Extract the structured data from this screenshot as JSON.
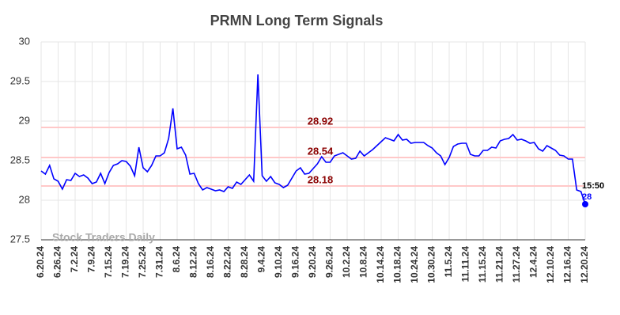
{
  "chart_data": {
    "type": "line",
    "title": "PRMN Long Term Signals",
    "categories": [
      "6.20.24",
      null,
      null,
      null,
      "6.26.24",
      null,
      null,
      null,
      "7.2.24",
      null,
      null,
      null,
      "7.9.24",
      null,
      null,
      null,
      "7.15.24",
      null,
      null,
      null,
      "7.19.24",
      null,
      null,
      null,
      "7.25.24",
      null,
      null,
      null,
      "7.31.24",
      null,
      null,
      null,
      "8.6.24",
      null,
      null,
      null,
      "8.12.24",
      null,
      null,
      null,
      "8.16.24",
      null,
      null,
      null,
      "8.22.24",
      null,
      null,
      null,
      "8.28.24",
      null,
      null,
      null,
      "9.4.24",
      null,
      null,
      null,
      "9.10.24",
      null,
      null,
      null,
      "9.16.24",
      null,
      null,
      null,
      "9.20.24",
      null,
      null,
      null,
      "9.26.24",
      null,
      null,
      null,
      "10.2.24",
      null,
      null,
      null,
      "10.8.24",
      null,
      null,
      null,
      "10.14.24",
      null,
      null,
      null,
      "10.18.24",
      null,
      null,
      null,
      "10.24.24",
      null,
      null,
      null,
      "10.30.24",
      null,
      null,
      null,
      "11.5.24",
      null,
      null,
      null,
      "11.11.24",
      null,
      null,
      null,
      "11.15.24",
      null,
      null,
      null,
      "11.21.24",
      null,
      null,
      null,
      "11.27.24",
      null,
      null,
      null,
      "12.4.24",
      null,
      null,
      null,
      "12.10.24",
      null,
      null,
      null,
      "12.16.24",
      null,
      null,
      null,
      "12.20.24"
    ],
    "series": [
      {
        "color": "#0000ff",
        "values": [
          28.37,
          28.33,
          28.44,
          28.27,
          28.24,
          28.14,
          28.26,
          28.25,
          28.34,
          28.3,
          28.32,
          28.28,
          28.21,
          28.23,
          28.34,
          28.21,
          28.35,
          28.44,
          28.46,
          28.5,
          28.49,
          28.43,
          28.31,
          28.67,
          28.41,
          28.36,
          28.44,
          28.56,
          28.56,
          28.6,
          28.78,
          29.16,
          28.65,
          28.67,
          28.57,
          28.33,
          28.34,
          28.21,
          28.13,
          28.16,
          28.14,
          28.12,
          28.13,
          28.11,
          28.17,
          28.15,
          28.23,
          28.2,
          28.26,
          28.32,
          28.24,
          29.59,
          28.31,
          28.24,
          28.3,
          28.22,
          28.2,
          28.16,
          28.19,
          28.28,
          28.37,
          28.41,
          28.33,
          28.34,
          28.4,
          28.46,
          28.55,
          28.48,
          28.48,
          28.56,
          28.58,
          28.6,
          28.56,
          28.52,
          28.53,
          28.62,
          28.56,
          28.6,
          28.64,
          28.69,
          28.74,
          28.79,
          28.77,
          28.75,
          28.83,
          28.76,
          28.77,
          28.72,
          28.73,
          28.73,
          28.73,
          28.69,
          28.66,
          28.6,
          28.56,
          28.45,
          28.54,
          28.68,
          28.71,
          28.72,
          28.72,
          28.58,
          28.56,
          28.56,
          28.63,
          28.63,
          28.67,
          28.66,
          28.75,
          28.77,
          28.78,
          28.83,
          28.76,
          28.77,
          28.75,
          28.72,
          28.73,
          28.65,
          28.62,
          28.69,
          28.66,
          28.63,
          28.57,
          28.56,
          28.52,
          28.52,
          28.13,
          28.11,
          27.95
        ]
      }
    ],
    "last_time": "15:50",
    "last_value_label": "28",
    "hlines": [
      28.92,
      28.54,
      28.18
    ],
    "hline_color": "#ffc8c8",
    "hline_label_color": "#8b0000",
    "watermark": "Stock Traders Daily",
    "ylim": [
      27.5,
      30
    ],
    "yticks": [
      27.5,
      28,
      28.5,
      29,
      29.5,
      30
    ],
    "grid": true
  }
}
